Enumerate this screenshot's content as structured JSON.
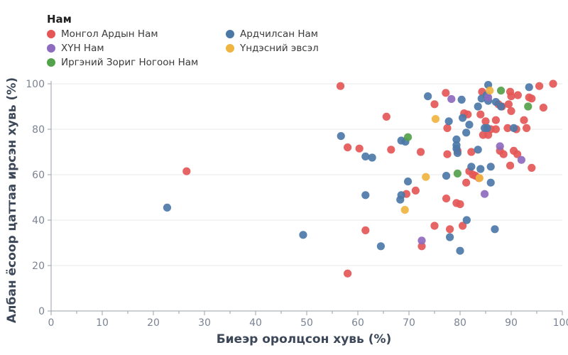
{
  "legend": {
    "title": "Нам"
  },
  "chart_data": {
    "type": "scatter",
    "xlabel": "Биеэр оролцсон хувь (%)",
    "ylabel": "Албан ёсоор цаттаа ирсэн хувь (%)",
    "xlim": [
      0,
      100
    ],
    "ylim": [
      0,
      100
    ],
    "xticks": [
      0,
      10,
      20,
      30,
      40,
      50,
      60,
      70,
      80,
      90,
      100
    ],
    "yticks": [
      0,
      20,
      40,
      60,
      80,
      100
    ],
    "grid": "horizontal",
    "legend_position": "top-left",
    "series": [
      {
        "name": "Монгол Ардын Нам",
        "color": "#e45756",
        "points": [
          [
            26.5,
            61.5
          ],
          [
            56.6,
            99
          ],
          [
            58,
            72
          ],
          [
            58,
            16.5
          ],
          [
            60.3,
            71.5
          ],
          [
            61.5,
            35.5
          ],
          [
            65.6,
            85.5
          ],
          [
            66.5,
            71
          ],
          [
            69.5,
            51.5
          ],
          [
            71.3,
            53
          ],
          [
            72.3,
            70
          ],
          [
            72.5,
            28.5
          ],
          [
            75,
            91
          ],
          [
            75,
            37.5
          ],
          [
            77.2,
            96
          ],
          [
            77.3,
            49.5
          ],
          [
            77.5,
            69
          ],
          [
            77.5,
            80.5
          ],
          [
            78,
            36
          ],
          [
            79.3,
            47.5
          ],
          [
            79.5,
            70.5
          ],
          [
            80,
            47
          ],
          [
            80.5,
            37.5
          ],
          [
            80.8,
            87
          ],
          [
            81.2,
            56.5
          ],
          [
            81.5,
            86.5
          ],
          [
            81.8,
            61.5
          ],
          [
            82.2,
            70
          ],
          [
            82.5,
            60
          ],
          [
            83,
            59.5
          ],
          [
            83.7,
            58.5
          ],
          [
            84,
            86.5
          ],
          [
            84.3,
            96.5
          ],
          [
            84.5,
            77.5
          ],
          [
            85,
            83.5
          ],
          [
            85.5,
            77.5
          ],
          [
            86,
            80
          ],
          [
            87,
            84
          ],
          [
            87,
            80
          ],
          [
            87.5,
            91
          ],
          [
            87.8,
            70.5
          ],
          [
            88.2,
            90
          ],
          [
            88.5,
            69
          ],
          [
            89.3,
            80.5
          ],
          [
            89.5,
            91
          ],
          [
            89.8,
            96.5
          ],
          [
            89.8,
            64
          ],
          [
            90,
            88
          ],
          [
            90,
            94.5
          ],
          [
            90.5,
            70.5
          ],
          [
            91,
            80
          ],
          [
            91.2,
            69
          ],
          [
            91.3,
            95
          ],
          [
            92.5,
            84
          ],
          [
            93,
            80.5
          ],
          [
            93.5,
            94
          ],
          [
            94,
            93.5
          ],
          [
            94,
            63
          ],
          [
            95.5,
            99
          ],
          [
            96.3,
            89.5
          ],
          [
            98.2,
            100
          ]
        ]
      },
      {
        "name": "Ардчилсан Нам",
        "color": "#4c78a8",
        "points": [
          [
            22.7,
            45.5
          ],
          [
            49.3,
            33.5
          ],
          [
            56.7,
            77
          ],
          [
            61.5,
            68
          ],
          [
            61.5,
            51
          ],
          [
            62.8,
            67.5
          ],
          [
            64.5,
            28.5
          ],
          [
            68.3,
            49
          ],
          [
            68.5,
            51
          ],
          [
            68.5,
            75
          ],
          [
            69.3,
            74.5
          ],
          [
            69.8,
            57
          ],
          [
            73.7,
            94.5
          ],
          [
            77.3,
            59.5
          ],
          [
            77.8,
            83.5
          ],
          [
            78,
            32.5
          ],
          [
            79.3,
            75.5
          ],
          [
            79.3,
            73
          ],
          [
            79.3,
            71.5
          ],
          [
            79.5,
            69.5
          ],
          [
            80,
            26.5
          ],
          [
            80.3,
            93
          ],
          [
            80.5,
            85
          ],
          [
            81.2,
            78.5
          ],
          [
            81.3,
            40
          ],
          [
            81.8,
            82
          ],
          [
            82.2,
            63.5
          ],
          [
            83.5,
            90
          ],
          [
            83.5,
            71
          ],
          [
            84,
            62.5
          ],
          [
            84.2,
            93.5
          ],
          [
            84.8,
            80.5
          ],
          [
            85.2,
            95
          ],
          [
            85.3,
            80.5
          ],
          [
            85.5,
            99.5
          ],
          [
            85.5,
            92.5
          ],
          [
            86,
            63.5
          ],
          [
            86,
            56.5
          ],
          [
            86.8,
            36
          ],
          [
            87,
            92
          ],
          [
            88,
            90
          ],
          [
            90.5,
            80.5
          ],
          [
            93.5,
            98.5
          ]
        ]
      },
      {
        "name": "ХҮН Нам",
        "color": "#8e6bbf",
        "points": [
          [
            72.5,
            31
          ],
          [
            78.3,
            93.3
          ],
          [
            84.8,
            51.5
          ],
          [
            85.5,
            94
          ],
          [
            87.8,
            72.5
          ],
          [
            92,
            66.5
          ]
        ]
      },
      {
        "name": "Үндэсний эвсэл",
        "color": "#f0b440",
        "points": [
          [
            69.2,
            44.5
          ],
          [
            73.3,
            59
          ],
          [
            75.2,
            84.5
          ],
          [
            83.8,
            58.5
          ],
          [
            85.8,
            97
          ]
        ]
      },
      {
        "name": "Иргэний Зориг Ногоон Нам",
        "color": "#54a24b",
        "points": [
          [
            69.8,
            76.5
          ],
          [
            79.5,
            60.5
          ],
          [
            88,
            97
          ],
          [
            93.3,
            90
          ]
        ]
      }
    ]
  }
}
